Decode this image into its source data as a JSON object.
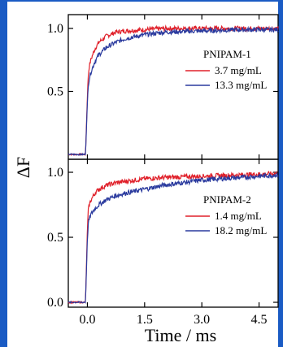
{
  "chart_data": {
    "type": "line",
    "xlabel": "Time / ms",
    "ylabel": "ΔF",
    "x_ticks": [
      "0.0",
      "1.5",
      "3.0",
      "4.5"
    ],
    "xlim": [
      -0.5,
      5.0
    ],
    "panels": [
      {
        "title": "PNIPAM-1",
        "y_ticks": [
          "0.5",
          "1.0"
        ],
        "ylim": [
          0.0,
          1.05
        ],
        "series": [
          {
            "name": "3.7 mg/mL",
            "color": "#e0202a",
            "x": [
              -0.5,
              -0.05,
              0.0,
              0.02,
              0.05,
              0.1,
              0.2,
              0.3,
              0.5,
              0.75,
              1.0,
              1.5,
              2.0,
              3.0,
              4.0,
              5.0
            ],
            "y": [
              0.0,
              0.0,
              0.45,
              0.62,
              0.7,
              0.76,
              0.84,
              0.89,
              0.94,
              0.97,
              0.98,
              0.99,
              1.0,
              1.0,
              1.0,
              1.0
            ]
          },
          {
            "name": "13.3 mg/mL",
            "color": "#2a3a9e",
            "x": [
              -0.5,
              -0.05,
              0.0,
              0.02,
              0.05,
              0.1,
              0.2,
              0.3,
              0.5,
              0.75,
              1.0,
              1.5,
              2.0,
              3.0,
              4.0,
              5.0
            ],
            "y": [
              0.0,
              0.0,
              0.4,
              0.55,
              0.6,
              0.66,
              0.74,
              0.79,
              0.85,
              0.89,
              0.92,
              0.95,
              0.97,
              0.98,
              0.99,
              0.99
            ]
          }
        ]
      },
      {
        "title": "PNIPAM-2",
        "y_ticks": [
          "0.0",
          "0.5",
          "1.0"
        ],
        "ylim": [
          0.0,
          1.05
        ],
        "series": [
          {
            "name": "1.4 mg/mL",
            "color": "#e0202a",
            "x": [
              -0.5,
              -0.05,
              0.0,
              0.02,
              0.05,
              0.1,
              0.2,
              0.3,
              0.5,
              0.75,
              1.0,
              1.5,
              2.0,
              3.0,
              4.0,
              5.0
            ],
            "y": [
              0.0,
              0.0,
              0.55,
              0.7,
              0.75,
              0.79,
              0.84,
              0.87,
              0.9,
              0.92,
              0.93,
              0.95,
              0.96,
              0.97,
              0.98,
              0.99
            ]
          },
          {
            "name": "18.2 mg/mL",
            "color": "#2a3a9e",
            "x": [
              -0.5,
              -0.05,
              0.0,
              0.02,
              0.05,
              0.1,
              0.2,
              0.3,
              0.5,
              0.75,
              1.0,
              1.5,
              2.0,
              3.0,
              4.0,
              5.0
            ],
            "y": [
              0.0,
              0.0,
              0.48,
              0.6,
              0.64,
              0.68,
              0.72,
              0.75,
              0.79,
              0.82,
              0.84,
              0.87,
              0.9,
              0.94,
              0.96,
              0.98
            ]
          }
        ]
      }
    ]
  }
}
